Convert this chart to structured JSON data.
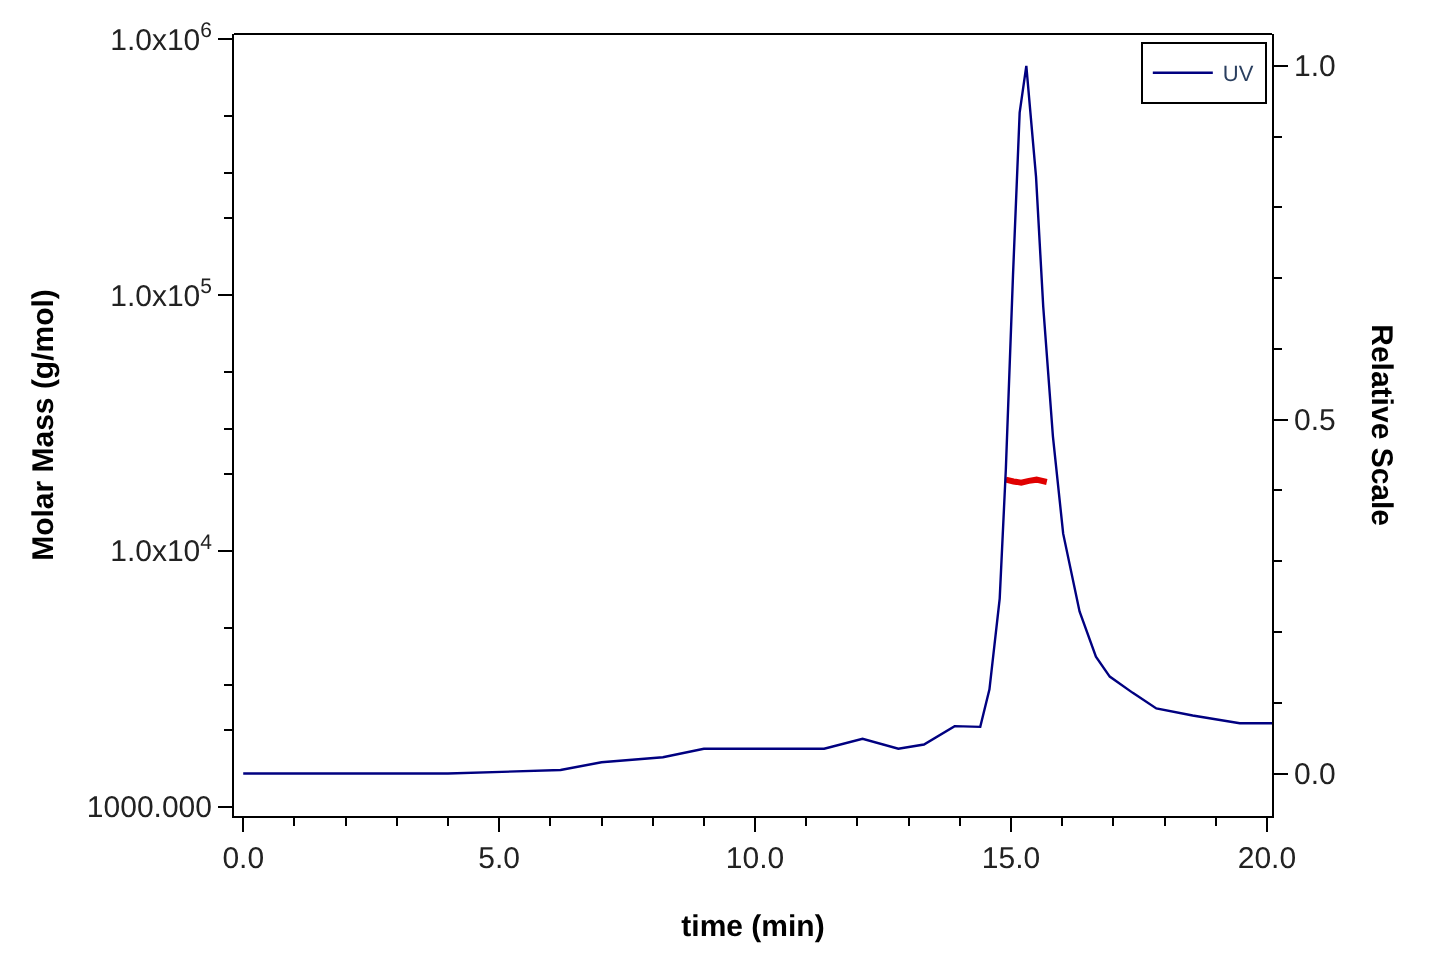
{
  "chart_data": {
    "type": "line",
    "xlabel": "time (min)",
    "ylabel": "Molar Mass (g/mol)",
    "y2label": "Relative Scale",
    "log": "y",
    "grid": false,
    "legend": "top right",
    "marker": "none",
    "line_style": "solid",
    "xlim": [
      -0.18,
      20.1
    ],
    "xticks": [
      {
        "value": 0,
        "label": "0.0"
      },
      {
        "value": 1,
        "label": null
      },
      {
        "value": 2,
        "label": null
      },
      {
        "value": 3,
        "label": null
      },
      {
        "value": 4,
        "label": null
      },
      {
        "value": 5,
        "label": "5.0"
      },
      {
        "value": 6,
        "label": null
      },
      {
        "value": 7,
        "label": null
      },
      {
        "value": 8,
        "label": null
      },
      {
        "value": 9,
        "label": null
      },
      {
        "value": 10,
        "label": "10.0"
      },
      {
        "value": 11,
        "label": null
      },
      {
        "value": 12,
        "label": null
      },
      {
        "value": 13,
        "label": null
      },
      {
        "value": 14,
        "label": null
      },
      {
        "value": 15,
        "label": "15.0"
      },
      {
        "value": 16,
        "label": null
      },
      {
        "value": 17,
        "label": null
      },
      {
        "value": 18,
        "label": null
      },
      {
        "value": 19,
        "label": null
      },
      {
        "value": 20,
        "label": "20.0"
      }
    ],
    "ylim": [
      920,
      1050000
    ],
    "yticks": [
      {
        "value": 1000,
        "label": "1000.000"
      },
      {
        "value": 2000,
        "label": null
      },
      {
        "value": 3000,
        "label": null
      },
      {
        "value": 5000,
        "label": null
      },
      {
        "value": 10000,
        "label": "1.0x10$^{4}$"
      },
      {
        "value": 20000,
        "label": null
      },
      {
        "value": 30000,
        "label": null
      },
      {
        "value": 50000,
        "label": null
      },
      {
        "value": 100000,
        "label": "1.0x10$^{5}$"
      },
      {
        "value": 200000,
        "label": null
      },
      {
        "value": 300000,
        "label": null
      },
      {
        "value": 500000,
        "label": null
      },
      {
        "value": 1000000,
        "label": "1.0x10$^{6}$"
      }
    ],
    "y2lim": [
      -0.06,
      1.045
    ],
    "y2ticks": [
      {
        "value": 0,
        "label": "0.0"
      },
      {
        "value": 0.1,
        "label": null
      },
      {
        "value": 0.2,
        "label": null
      },
      {
        "value": 0.3,
        "label": null
      },
      {
        "value": 0.4,
        "label": null
      },
      {
        "value": 0.5,
        "label": "0.5"
      },
      {
        "value": 0.6,
        "label": null
      },
      {
        "value": 0.7,
        "label": null
      },
      {
        "value": 0.8,
        "label": null
      },
      {
        "value": 0.9,
        "label": null
      },
      {
        "value": 1.0,
        "label": "1.0"
      }
    ],
    "series": [
      {
        "name": "UV",
        "axis": "y2",
        "color": "#000080",
        "x": [
          0,
          0.98,
          4.0,
          6.2,
          7.0,
          8.2,
          9.0,
          11.35,
          12.1,
          12.8,
          13.3,
          13.9,
          14.4,
          14.58,
          14.78,
          14.9,
          15.04,
          15.17,
          15.3,
          15.49,
          15.63,
          15.82,
          16.02,
          16.34,
          16.66,
          16.93,
          17.38,
          17.84,
          18.55,
          19.47,
          20.1
        ],
        "values": [
          0.0,
          0.0,
          0.0,
          0.005,
          0.016,
          0.023,
          0.035,
          0.035,
          0.049,
          0.035,
          0.041,
          0.067,
          0.066,
          0.119,
          0.247,
          0.43,
          0.705,
          0.934,
          1.0,
          0.843,
          0.66,
          0.476,
          0.339,
          0.229,
          0.165,
          0.137,
          0.114,
          0.092,
          0.082,
          0.071,
          0.071
        ]
      },
      {
        "color": "#e00000",
        "x": [
          14.9,
          15.05,
          15.2,
          15.35,
          15.5,
          15.7
        ],
        "values": [
          19000,
          18700,
          18500,
          18800,
          19000,
          18600
        ]
      }
    ]
  }
}
